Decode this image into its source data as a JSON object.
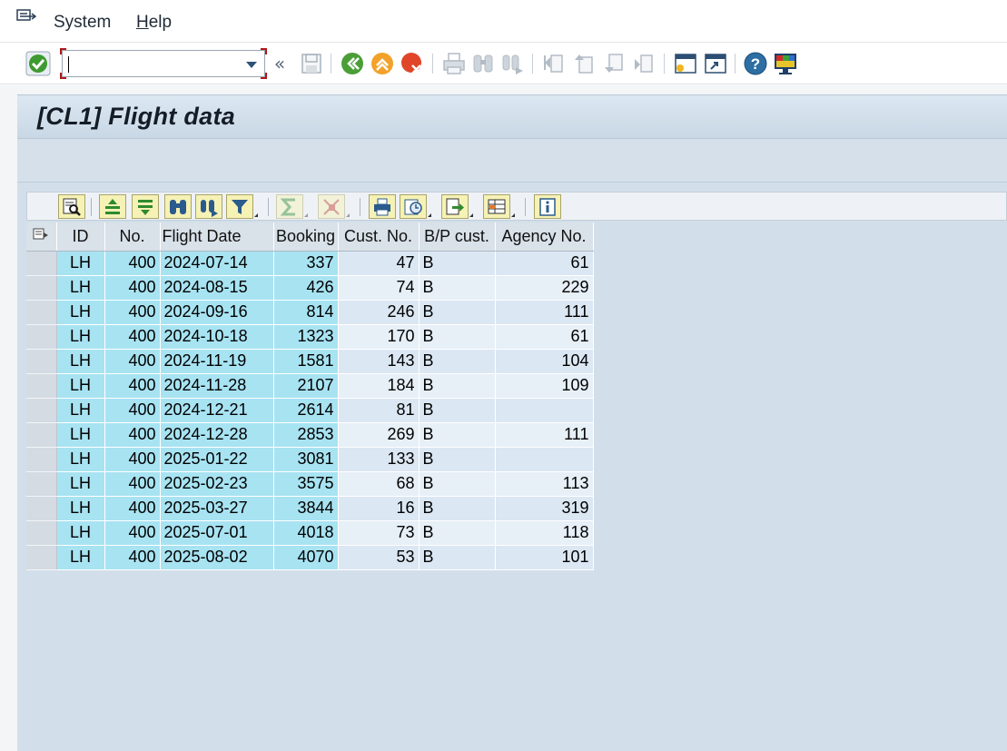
{
  "menubar": {
    "items": [
      {
        "label": "System"
      },
      {
        "label_first": "H",
        "label_rest": "elp"
      }
    ]
  },
  "toolbar": {
    "command_field_value": "",
    "icons": [
      "enter-icon",
      "command-field",
      "expand-icon",
      "save-icon",
      "back-icon",
      "exit-icon",
      "cancel-icon",
      "print-icon",
      "find-icon",
      "find-next-icon",
      "first-page-icon",
      "previous-page-icon",
      "next-page-icon",
      "last-page-icon",
      "new-session-icon",
      "create-shortcut-icon",
      "help-icon",
      "customize-layout-icon"
    ]
  },
  "page": {
    "title": "[CL1] Flight data"
  },
  "alv_toolbar": {
    "icons": [
      "details-icon",
      "sort-ascending-icon",
      "sort-descending-icon",
      "find-icon",
      "find-next-icon",
      "filter-icon",
      "sum-icon",
      "subtotals-icon",
      "print-preview-icon",
      "views-icon",
      "export-icon",
      "layout-icon",
      "info-icon"
    ]
  },
  "grid": {
    "columns": [
      "ID",
      "No.",
      "Flight Date",
      "Booking",
      "Cust. No.",
      "B/P cust.",
      "Agency No."
    ],
    "rows": [
      [
        "LH",
        "400",
        "2024-07-14",
        "337",
        "47",
        "B",
        "61"
      ],
      [
        "LH",
        "400",
        "2024-08-15",
        "426",
        "74",
        "B",
        "229"
      ],
      [
        "LH",
        "400",
        "2024-09-16",
        "814",
        "246",
        "B",
        "111"
      ],
      [
        "LH",
        "400",
        "2024-10-18",
        "1323",
        "170",
        "B",
        "61"
      ],
      [
        "LH",
        "400",
        "2024-11-19",
        "1581",
        "143",
        "B",
        "104"
      ],
      [
        "LH",
        "400",
        "2024-11-28",
        "2107",
        "184",
        "B",
        "109"
      ],
      [
        "LH",
        "400",
        "2024-12-21",
        "2614",
        "81",
        "B",
        ""
      ],
      [
        "LH",
        "400",
        "2024-12-28",
        "2853",
        "269",
        "B",
        "111"
      ],
      [
        "LH",
        "400",
        "2025-01-22",
        "3081",
        "133",
        "B",
        ""
      ],
      [
        "LH",
        "400",
        "2025-02-23",
        "3575",
        "68",
        "B",
        "113"
      ],
      [
        "LH",
        "400",
        "2025-03-27",
        "3844",
        "16",
        "B",
        "319"
      ],
      [
        "LH",
        "400",
        "2025-07-01",
        "4018",
        "73",
        "B",
        "118"
      ],
      [
        "LH",
        "400",
        "2025-08-02",
        "4070",
        "53",
        "B",
        "101"
      ]
    ]
  },
  "colors": {
    "key_column": "#a8e3f2",
    "workarea": "#d2dfea",
    "title_bar": "#c9d8e6",
    "command_frame": "#b01818"
  }
}
